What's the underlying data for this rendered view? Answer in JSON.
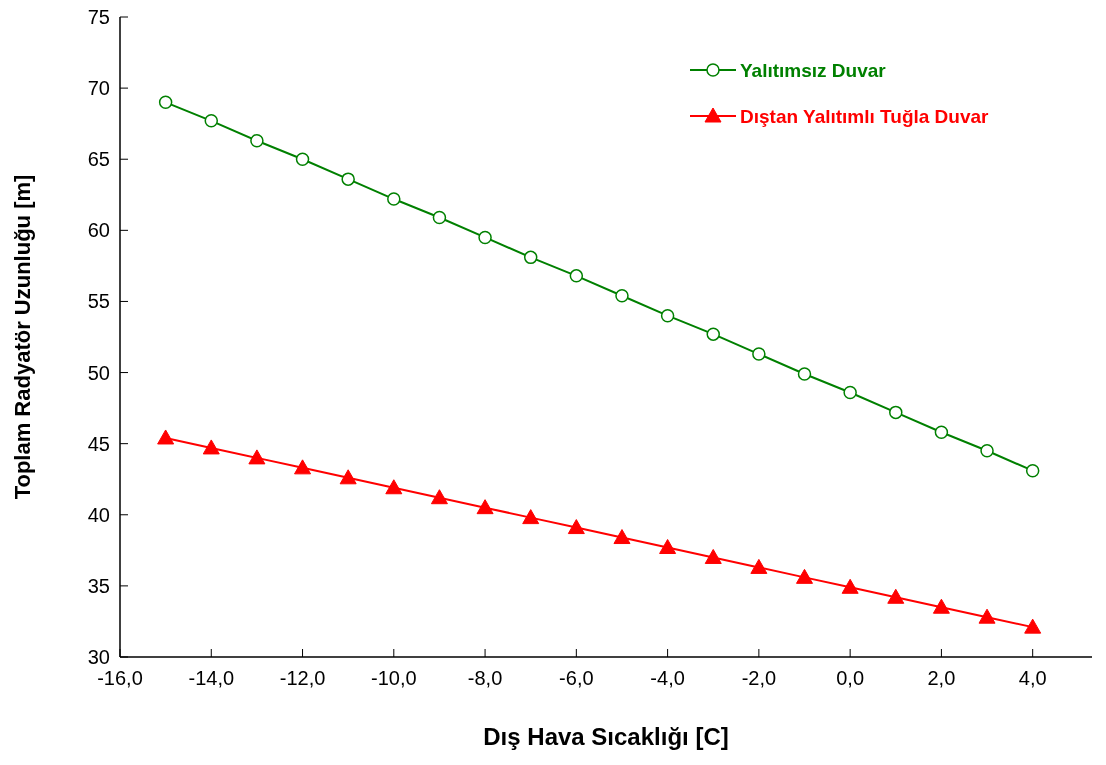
{
  "chart_data": {
    "type": "line",
    "xlabel": "Dış Hava Sıcaklığı [C]",
    "ylabel": "Toplam Radyatör Uzunluğu [m]",
    "x": [
      -15,
      -14,
      -13,
      -12,
      -11,
      -10,
      -9,
      -8,
      -7,
      -6,
      -5,
      -4,
      -3,
      -2,
      -1,
      0,
      1,
      2,
      3,
      4
    ],
    "series": [
      {
        "name": "Yalıtımsız Duvar",
        "color": "#008000",
        "marker": "circle",
        "values": [
          69.0,
          67.7,
          66.3,
          65.0,
          63.6,
          62.2,
          60.9,
          59.5,
          58.1,
          56.8,
          55.4,
          54.0,
          52.7,
          51.3,
          49.9,
          48.6,
          47.2,
          45.8,
          44.5,
          43.1
        ]
      },
      {
        "name": "Dıştan Yalıtımlı Tuğla Duvar",
        "color": "#ff0000",
        "marker": "triangle",
        "values": [
          45.4,
          44.7,
          44.0,
          43.3,
          42.6,
          41.9,
          41.2,
          40.5,
          39.8,
          39.1,
          38.4,
          37.7,
          37.0,
          36.3,
          35.6,
          34.9,
          34.2,
          33.5,
          32.8,
          32.1
        ]
      }
    ],
    "xlim": [
      -16,
      5.3
    ],
    "ylim": [
      30,
      75
    ],
    "xticks": [
      {
        "value": -16,
        "label": "-16,0"
      },
      {
        "value": -14,
        "label": "-14,0"
      },
      {
        "value": -12,
        "label": "-12,0"
      },
      {
        "value": -10,
        "label": "-10,0"
      },
      {
        "value": -8,
        "label": "-8,0"
      },
      {
        "value": -6,
        "label": "-6,0"
      },
      {
        "value": -4,
        "label": "-4,0"
      },
      {
        "value": -2,
        "label": "-2,0"
      },
      {
        "value": 0,
        "label": "0,0"
      },
      {
        "value": 2,
        "label": "2,0"
      },
      {
        "value": 4,
        "label": "4,0"
      }
    ],
    "yticks": [
      30,
      35,
      40,
      45,
      50,
      55,
      60,
      65,
      70,
      75
    ],
    "legend": "top right",
    "line_style": "solid"
  }
}
